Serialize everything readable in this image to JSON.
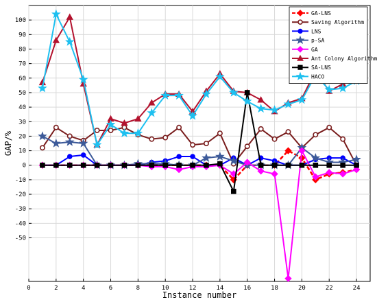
{
  "chart_data": {
    "type": "line",
    "xlabel": "Instance number",
    "ylabel": "GAP/%",
    "xlim": [
      0,
      25
    ],
    "ylim": [
      -80,
      110
    ],
    "x_ticks": [
      0,
      2,
      4,
      6,
      8,
      10,
      12,
      14,
      16,
      18,
      20,
      22,
      24
    ],
    "y_ticks": [
      -50,
      -40,
      -30,
      -20,
      -10,
      0,
      10,
      20,
      30,
      40,
      50,
      60,
      70,
      80,
      90,
      100
    ],
    "grid": true,
    "legend_position": "top-right",
    "x": [
      1,
      2,
      3,
      4,
      5,
      6,
      7,
      8,
      9,
      10,
      11,
      12,
      13,
      14,
      15,
      16,
      17,
      18,
      19,
      20,
      21,
      22,
      23,
      24
    ],
    "series": [
      {
        "name": "GA-LNS",
        "color": "#ff0000",
        "marker": "diamond",
        "dashed": true,
        "values": [
          0,
          0,
          0,
          0,
          0,
          0,
          0,
          0,
          0,
          0,
          0,
          0,
          0,
          0,
          -10,
          0,
          0,
          0,
          10,
          5,
          -10,
          -6,
          -5,
          -3
        ]
      },
      {
        "name": "Saving Algorithm",
        "color": "#7a1e1e",
        "marker": "circle-open",
        "values": [
          12,
          26,
          20,
          17,
          24,
          24,
          26,
          21,
          18,
          19,
          26,
          14,
          15,
          22,
          1,
          13,
          25,
          18,
          23,
          12,
          21,
          26,
          18,
          0
        ]
      },
      {
        "name": "LNS",
        "color": "#0000ff",
        "marker": "circle",
        "values": [
          0,
          0,
          6,
          7,
          0,
          0,
          0,
          0,
          2,
          3,
          6,
          6,
          0,
          0,
          5,
          0,
          5,
          3,
          0,
          0,
          4,
          5,
          5,
          0
        ]
      },
      {
        "name": "p-SA",
        "color": "#3d5a99",
        "marker": "star",
        "values": [
          20,
          15,
          16,
          15,
          0,
          0,
          0,
          1,
          1,
          1,
          0,
          0,
          5,
          6,
          3,
          0,
          0,
          0,
          0,
          12,
          5,
          2,
          2,
          4
        ]
      },
      {
        "name": "GA",
        "color": "#ff00ff",
        "marker": "diamond",
        "values": [
          0,
          0,
          0,
          0,
          0,
          0,
          0,
          0,
          -1,
          -1,
          -3,
          -1,
          -1,
          0,
          -6,
          2,
          -4,
          -6,
          -78,
          10,
          -8,
          -5,
          -6,
          -3
        ]
      },
      {
        "name": "Ant Colony Algorithm",
        "color": "#b3122e",
        "marker": "triangle",
        "values": [
          57,
          86,
          102,
          56,
          14,
          32,
          29,
          32,
          43,
          49,
          49,
          37,
          51,
          63,
          51,
          50,
          45,
          37,
          43,
          46,
          65,
          51,
          56,
          65
        ]
      },
      {
        "name": "SA-LNS",
        "color": "#000000",
        "marker": "square",
        "values": [
          0,
          0,
          0,
          0,
          0,
          0,
          0,
          0,
          0,
          0,
          0,
          0,
          0,
          1,
          -18,
          50,
          0,
          0,
          0,
          0,
          0,
          0,
          0,
          0
        ]
      },
      {
        "name": "HACO",
        "color": "#1ec0f0",
        "marker": "star",
        "values": [
          53,
          104,
          85,
          59,
          14,
          28,
          22,
          22,
          36,
          48,
          48,
          34,
          49,
          61,
          50,
          44,
          39,
          38,
          42,
          45,
          62,
          52,
          53,
          58
        ]
      }
    ]
  }
}
